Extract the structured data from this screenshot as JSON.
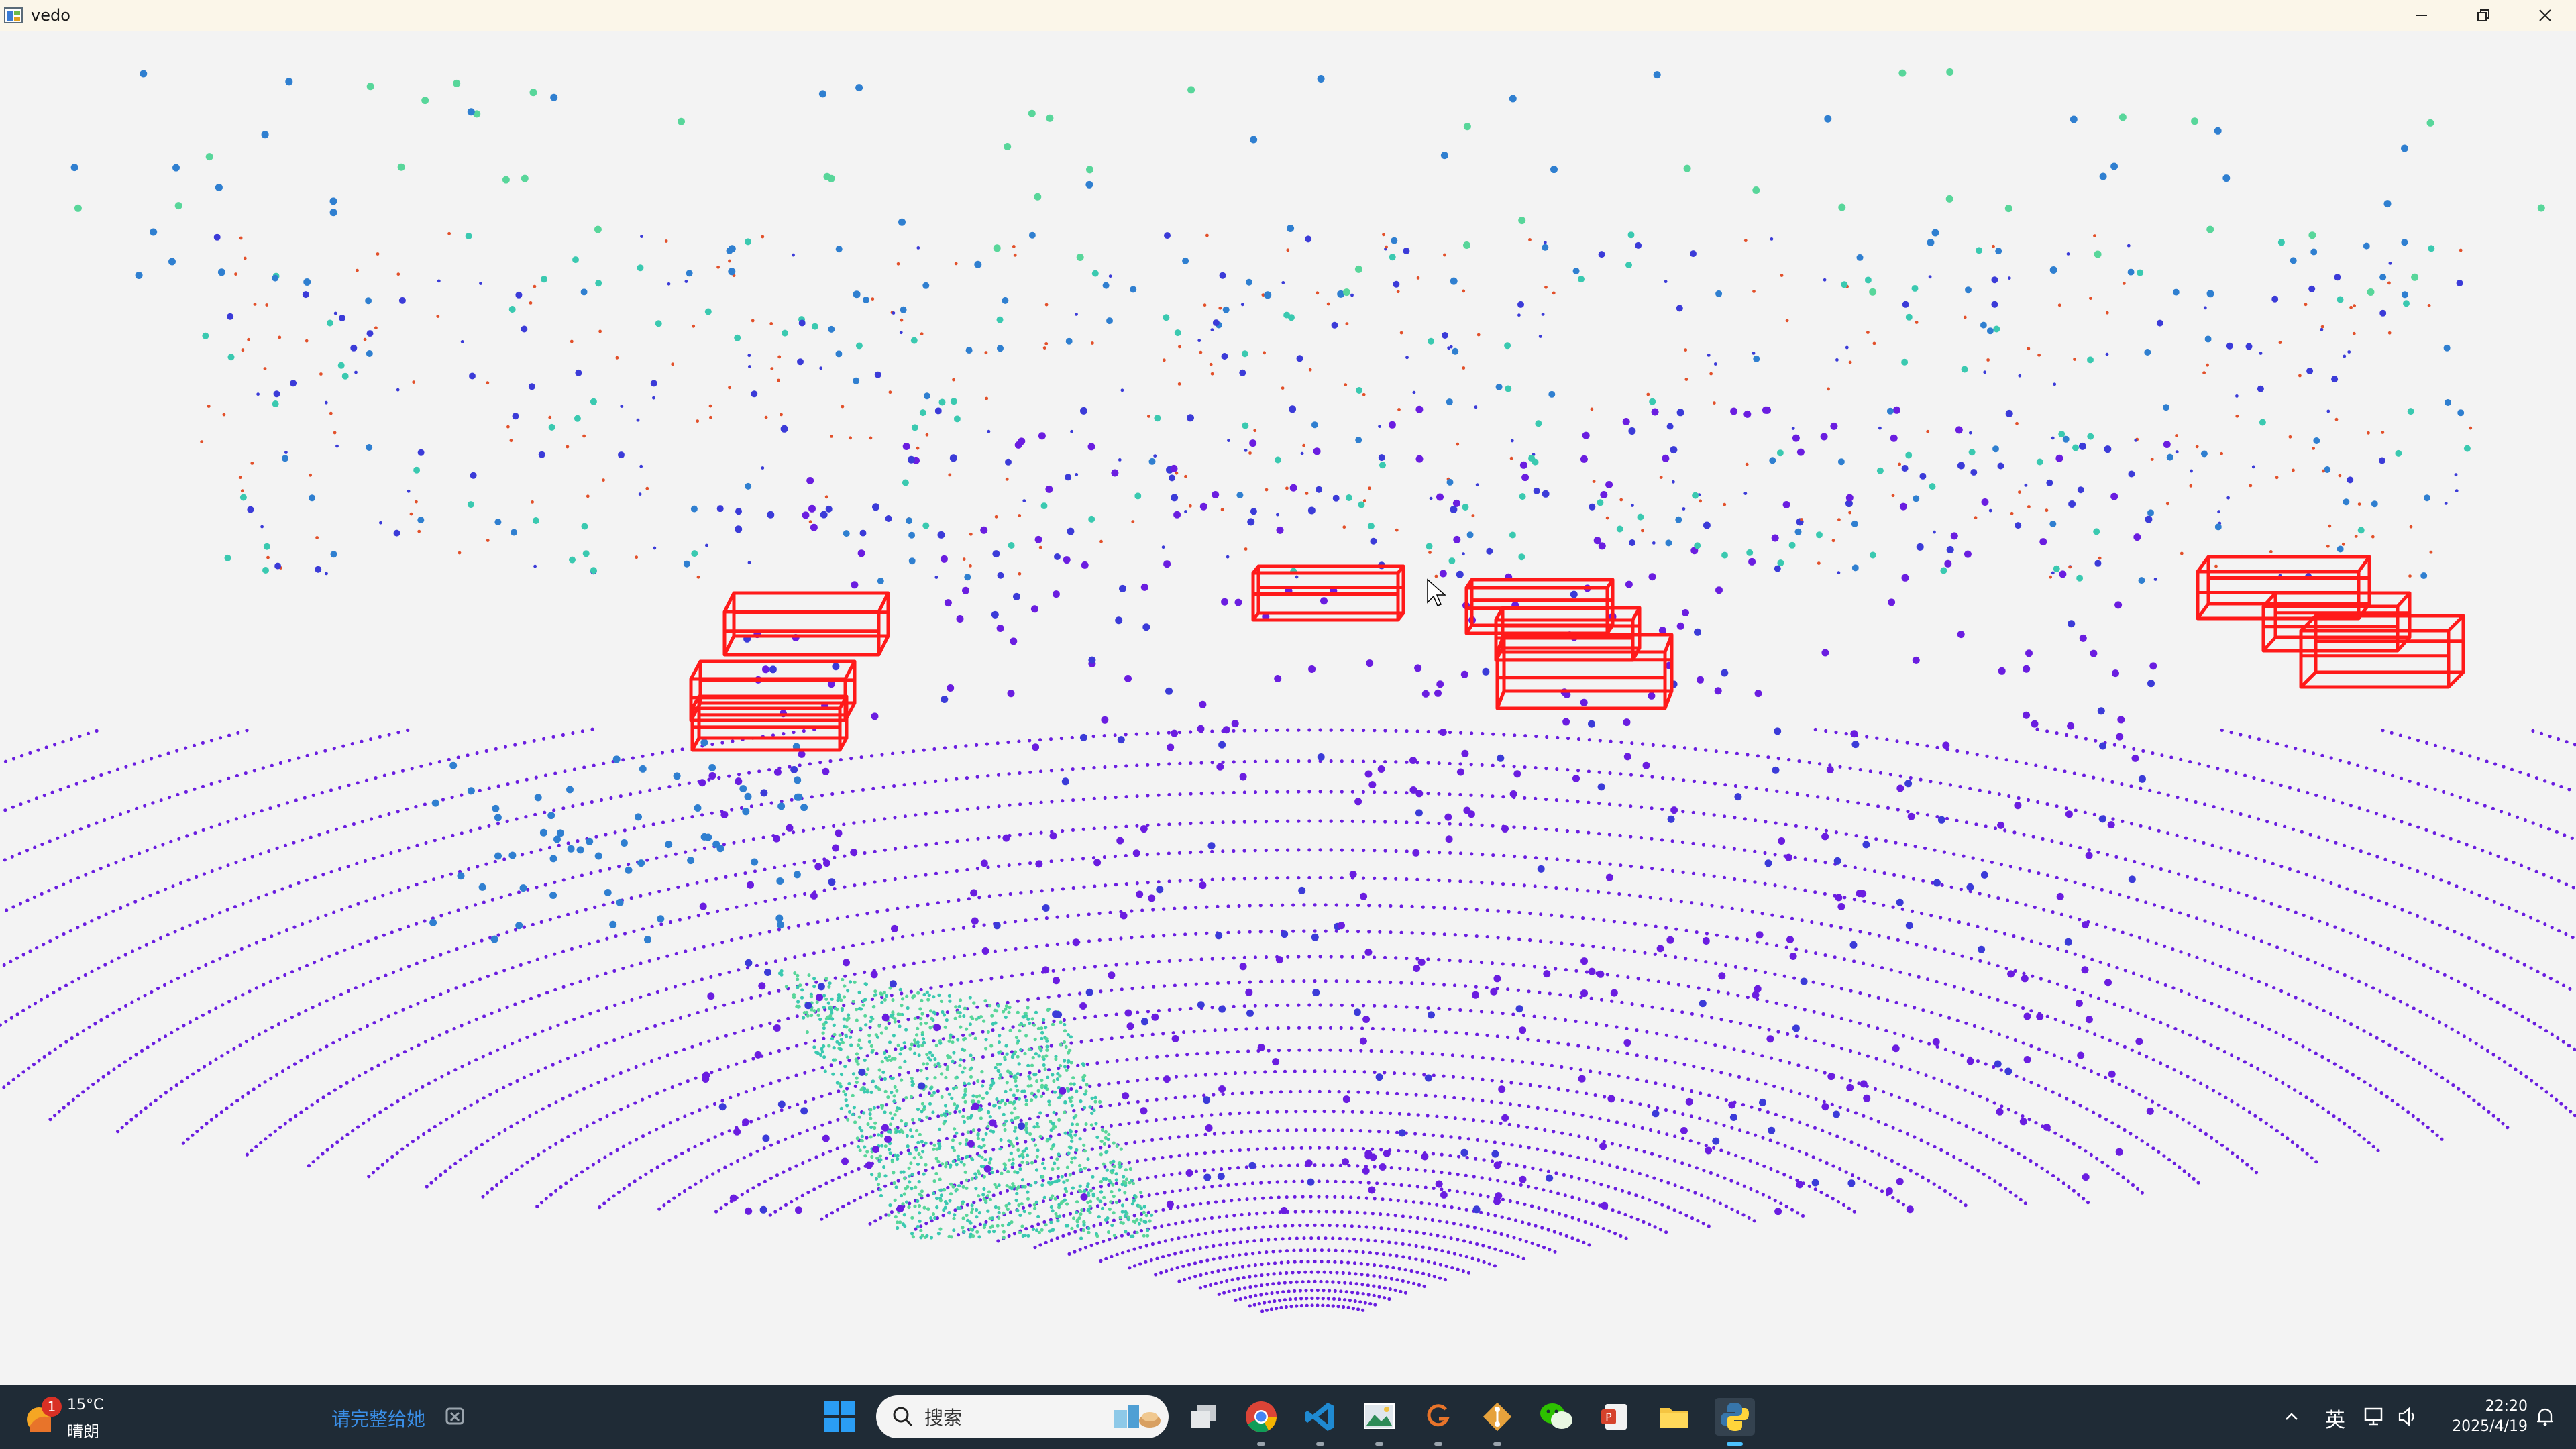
{
  "window": {
    "title": "vedo",
    "controls": [
      "minimize-icon",
      "restore-icon",
      "close-icon"
    ]
  },
  "viewer": {
    "background": "#f3f3f3",
    "box_color": "#ff1a1a",
    "point_colors": [
      "#6a1de0",
      "#3b3bd8",
      "#2f7fd0",
      "#3ac9b0",
      "#58d69a",
      "#e2502a"
    ]
  },
  "taskbar": {
    "weather": {
      "temperature": "15°C",
      "condition": "晴朗",
      "badge": "1"
    },
    "news_text": "请完整给她",
    "search": {
      "placeholder": "搜索"
    },
    "apps": [
      "windows-start-icon",
      "task-view-icon",
      "chrome-icon",
      "vscode-icon",
      "image-viewer-icon",
      "grammarly-icon",
      "git-icon",
      "wechat-icon",
      "office-icon",
      "file-explorer-icon",
      "python-icon"
    ],
    "tray": {
      "ime": "英"
    },
    "clock": {
      "time": "22:20",
      "date": "2025/4/19"
    }
  }
}
